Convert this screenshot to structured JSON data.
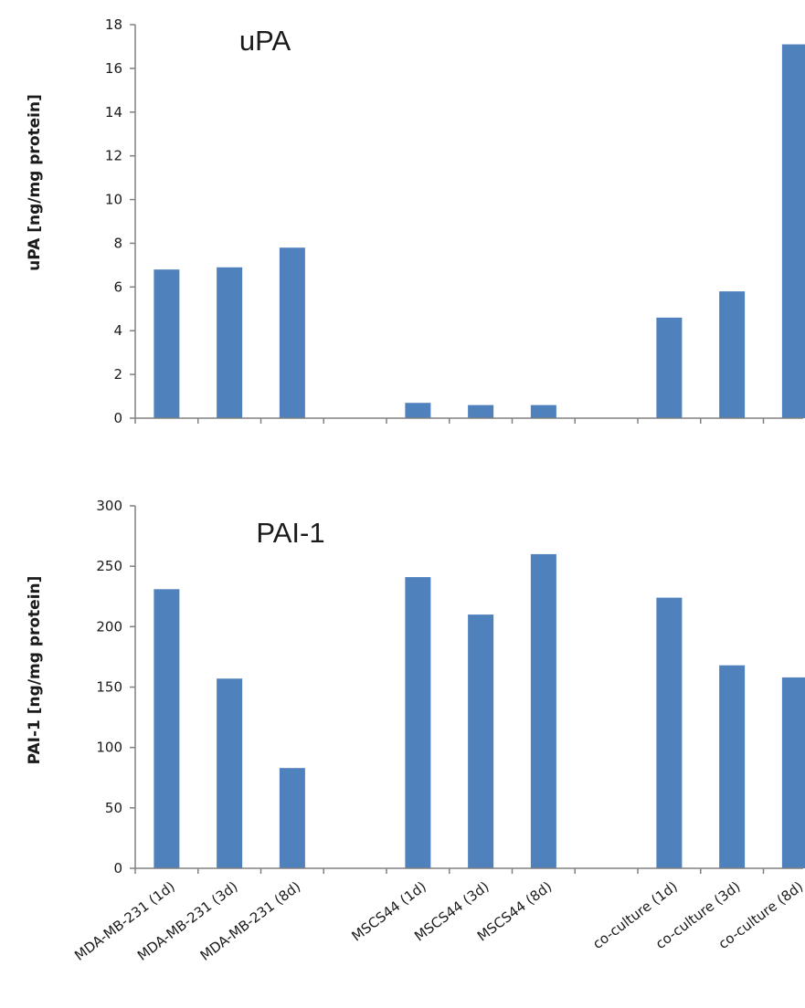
{
  "chart_data": [
    {
      "type": "bar",
      "title": "uPA",
      "xlabel": "",
      "ylabel": "uPA [ng/mg protein]",
      "ylim": [
        0,
        18
      ],
      "yticks": [
        0,
        2,
        4,
        6,
        8,
        10,
        12,
        14,
        16,
        18
      ],
      "grid": false,
      "bar_color": "#4f81bd",
      "categories": [
        "MDA-MB-231 (1d)",
        "MDA-MB-231 (3d)",
        "MDA-MB-231 (8d)",
        "",
        "MSCS44 (1d)",
        "MSCS44 (3d)",
        "MSCS44 (8d)",
        "",
        "co-culture (1d)",
        "co-culture (3d)",
        "co-culture (8d)"
      ],
      "values": [
        6.8,
        6.9,
        7.8,
        null,
        0.7,
        0.6,
        0.6,
        null,
        4.6,
        5.8,
        17.1
      ]
    },
    {
      "type": "bar",
      "title": "PAI-1",
      "xlabel": "",
      "ylabel": "PAI-1 [ng/mg protein]",
      "ylim": [
        0,
        300
      ],
      "yticks": [
        0,
        50,
        100,
        150,
        200,
        250,
        300
      ],
      "grid": false,
      "bar_color": "#4f81bd",
      "categories": [
        "MDA-MB-231 (1d)",
        "MDA-MB-231 (3d)",
        "MDA-MB-231 (8d)",
        "",
        "MSCS44 (1d)",
        "MSCS44 (3d)",
        "MSCS44 (8d)",
        "",
        "co-culture (1d)",
        "co-culture (3d)",
        "co-culture (8d)"
      ],
      "values": [
        231,
        157,
        83,
        null,
        241,
        210,
        260,
        null,
        224,
        168,
        158
      ]
    }
  ]
}
